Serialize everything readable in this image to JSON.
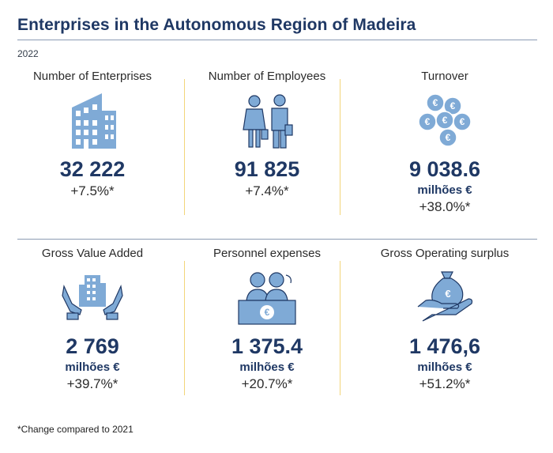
{
  "header": {
    "title": "Enterprises in the Autonomous Region of Madeira",
    "year": "2022"
  },
  "indicators": [
    {
      "label": "Number of Enterprises",
      "icon": "office-building-icon",
      "value": "32 222",
      "unit": "",
      "change": "+7.5%*"
    },
    {
      "label": "Number of Employees",
      "icon": "employees-icon",
      "value": "91 825",
      "unit": "",
      "change": "+7.4%*"
    },
    {
      "label": "Turnover",
      "icon": "euro-coins-icon",
      "value": "9 038.6",
      "unit": "milhões €",
      "change": "+38.0%*"
    },
    {
      "label": "Gross Value Added",
      "icon": "hands-building-icon",
      "value": "2 769",
      "unit": "milhões €",
      "change": "+39.7%*"
    },
    {
      "label": "Personnel expenses",
      "icon": "personnel-desk-icon",
      "value": "1 375.4",
      "unit": "milhões €",
      "change": "+20.7%*"
    },
    {
      "label": "Gross Operating surplus",
      "icon": "money-bag-hand-icon",
      "value": "1 476,6",
      "unit": "milhões €",
      "change": "+51.2%*"
    }
  ],
  "footnote": "*Change compared to 2021",
  "colors": {
    "navy": "#1f3864",
    "icon_blue": "#7faad6",
    "divider": "#f2d57a",
    "rule": "#8c9bb3"
  }
}
